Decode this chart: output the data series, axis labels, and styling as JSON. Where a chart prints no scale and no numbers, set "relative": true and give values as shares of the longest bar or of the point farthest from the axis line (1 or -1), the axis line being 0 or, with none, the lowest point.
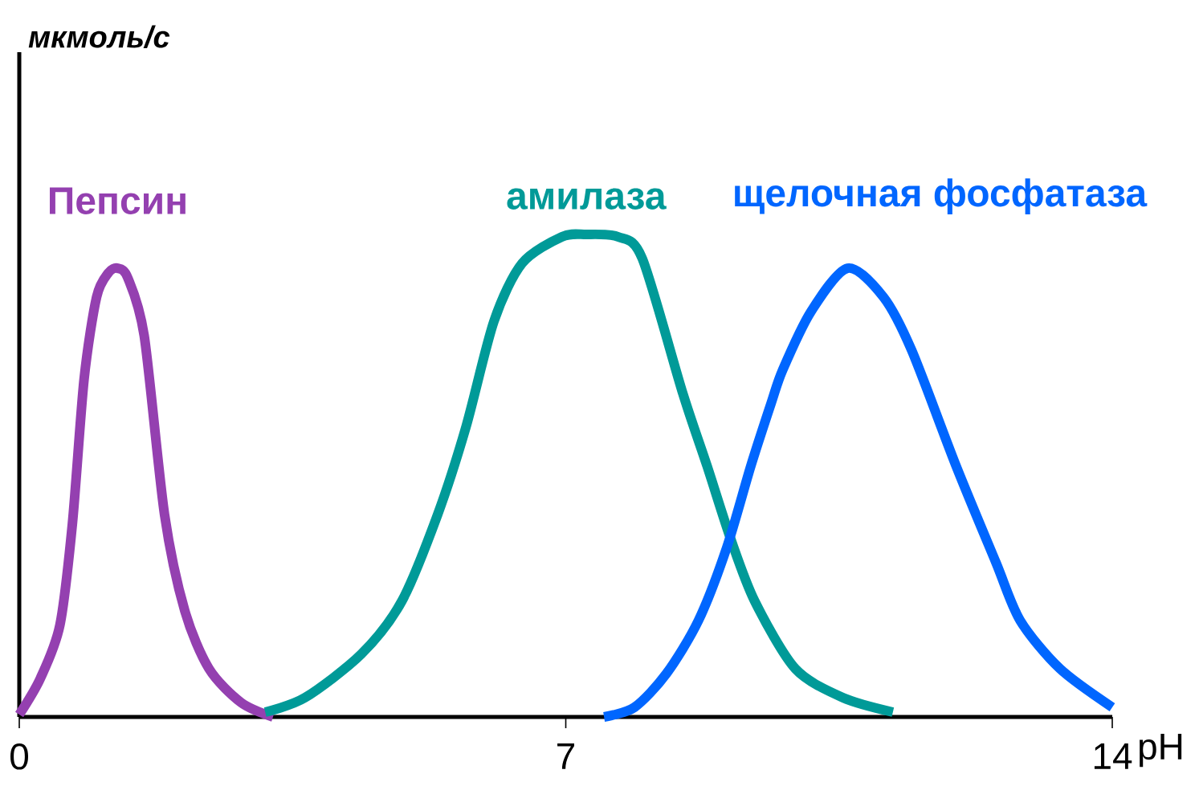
{
  "chart_data": {
    "type": "line",
    "relative": true,
    "annotations": [
      "мкмоль/с"
    ],
    "xlabel": "pH",
    "xlim": [
      0,
      14
    ],
    "xticks": [
      0,
      7,
      14
    ],
    "series": [
      {
        "name": "Пепсин",
        "color": "#9440b0",
        "x": [
          0,
          0.27,
          0.52,
          0.68,
          0.83,
          0.99,
          1.14,
          1.26,
          1.39,
          1.6,
          1.86,
          2.12,
          2.43,
          2.84,
          3.25
        ],
        "values": [
          0.005,
          0.08,
          0.19,
          0.4,
          0.7,
          0.87,
          0.92,
          0.93,
          0.91,
          0.79,
          0.42,
          0.22,
          0.1,
          0.03,
          0
        ]
      },
      {
        "name": "амилаза",
        "color": "#009a98",
        "x": [
          3.15,
          3.66,
          4.38,
          4.9,
          5.36,
          5.72,
          6.08,
          6.44,
          6.95,
          7.26,
          7.67,
          7.98,
          8.5,
          8.81,
          9.11,
          9.42,
          9.94,
          10.55,
          11.19
        ],
        "values": [
          0.01,
          0.04,
          0.13,
          0.24,
          0.42,
          0.6,
          0.82,
          0.94,
          0.995,
          1,
          0.995,
          0.95,
          0.67,
          0.52,
          0.37,
          0.24,
          0.1,
          0.04,
          0.01
        ]
      },
      {
        "name": "щелочная фосфатаза",
        "color": "#0066ff",
        "x": [
          7.49,
          7.88,
          8.29,
          8.7,
          9.06,
          9.37,
          9.63,
          9.78,
          10.14,
          10.61,
          11.07,
          11.43,
          12.0,
          12.51,
          12.82,
          13.33,
          14.0
        ],
        "values": [
          0,
          0.02,
          0.09,
          0.2,
          0.35,
          0.52,
          0.65,
          0.72,
          0.84,
          0.93,
          0.87,
          0.76,
          0.52,
          0.32,
          0.2,
          0.1,
          0.02
        ]
      }
    ]
  }
}
